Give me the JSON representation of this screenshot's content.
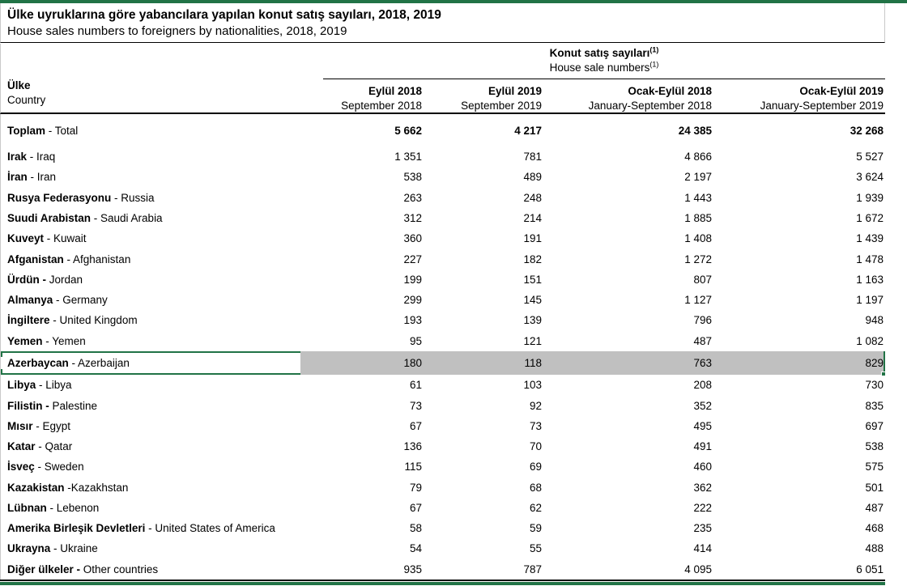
{
  "accent_green": "#217346",
  "highlight_gray": "#c0c0c0",
  "titles": {
    "tr": "Ülke uyruklarına göre yabancılara yapılan konut satış sayıları, 2018, 2019",
    "en": "House sales numbers to foreigners by nationalities, 2018, 2019"
  },
  "table": {
    "group_header": {
      "tr": "Konut satış sayıları",
      "en": "House sale numbers",
      "footnote": "(1)"
    },
    "row_header": {
      "tr": "Ülke",
      "en": "Country"
    },
    "columns": [
      {
        "tr": "Eylül 2018",
        "en": "September 2018"
      },
      {
        "tr": "Eylül 2019",
        "en": "September 2019"
      },
      {
        "tr": "Ocak-Eylül 2018",
        "en": "January-September 2018"
      },
      {
        "tr": "Ocak-Eylül 2019",
        "en": "January-September 2019"
      }
    ],
    "total_row": {
      "bold": "Toplam",
      "rest": " - Total",
      "values": [
        "5 662",
        "4 217",
        "24 385",
        "32 268"
      ]
    },
    "rows": [
      {
        "bold": "Irak",
        "rest": " - Iraq",
        "values": [
          "1 351",
          "781",
          "4 866",
          "5 527"
        ]
      },
      {
        "bold": "İran",
        "rest": " - Iran",
        "values": [
          "538",
          "489",
          "2 197",
          "3 624"
        ]
      },
      {
        "bold": "Rusya Federasyonu",
        "rest": " - Russia",
        "values": [
          "263",
          "248",
          "1 443",
          "1 939"
        ]
      },
      {
        "bold": "Suudi Arabistan",
        "rest": " - Saudi Arabia",
        "values": [
          "312",
          "214",
          "1 885",
          "1 672"
        ]
      },
      {
        "bold": "Kuveyt",
        "rest": " - Kuwait",
        "values": [
          "360",
          "191",
          "1 408",
          "1 439"
        ]
      },
      {
        "bold": "Afganistan",
        "rest": " - Afghanistan",
        "values": [
          "227",
          "182",
          "1 272",
          "1 478"
        ]
      },
      {
        "bold": "Ürdün -",
        "rest": " Jordan",
        "values": [
          "199",
          "151",
          "807",
          "1 163"
        ]
      },
      {
        "bold": "Almanya",
        "rest": " - Germany",
        "values": [
          "299",
          "145",
          "1 127",
          "1 197"
        ]
      },
      {
        "bold": "İngiltere",
        "rest": " - United Kingdom",
        "values": [
          "193",
          "139",
          "796",
          "948"
        ]
      },
      {
        "bold": "Yemen",
        "rest": " - Yemen",
        "values": [
          "95",
          "121",
          "487",
          "1 082"
        ]
      },
      {
        "bold": "Azerbaycan",
        "rest": " - Azerbaijan",
        "values": [
          "180",
          "118",
          "763",
          "829"
        ],
        "selected": true
      },
      {
        "bold": "Libya",
        "rest": " - Libya",
        "values": [
          "61",
          "103",
          "208",
          "730"
        ]
      },
      {
        "bold": "Filistin -",
        "rest": " Palestine",
        "values": [
          "73",
          "92",
          "352",
          "835"
        ]
      },
      {
        "bold": "Mısır",
        "rest": " - Egypt",
        "values": [
          "67",
          "73",
          "495",
          "697"
        ]
      },
      {
        "bold": "Katar",
        "rest": " - Qatar",
        "values": [
          "136",
          "70",
          "491",
          "538"
        ]
      },
      {
        "bold": "İsveç",
        "rest": " - Sweden",
        "values": [
          "115",
          "69",
          "460",
          "575"
        ]
      },
      {
        "bold": "Kazakistan",
        "rest": " -Kazakhstan",
        "values": [
          "79",
          "68",
          "362",
          "501"
        ]
      },
      {
        "bold": "Lübnan",
        "rest": " - Lebenon",
        "values": [
          "67",
          "62",
          "222",
          "487"
        ]
      },
      {
        "bold": "Amerika Birleşik Devletleri",
        "rest": " - United States of America",
        "values": [
          "58",
          "59",
          "235",
          "468"
        ]
      },
      {
        "bold": "Ukrayna",
        "rest": " - Ukraine",
        "values": [
          "54",
          "55",
          "414",
          "488"
        ]
      },
      {
        "bold": "Diğer ülkeler -",
        "rest": " Other countries",
        "values": [
          "935",
          "787",
          "4 095",
          "6 051"
        ]
      }
    ]
  }
}
